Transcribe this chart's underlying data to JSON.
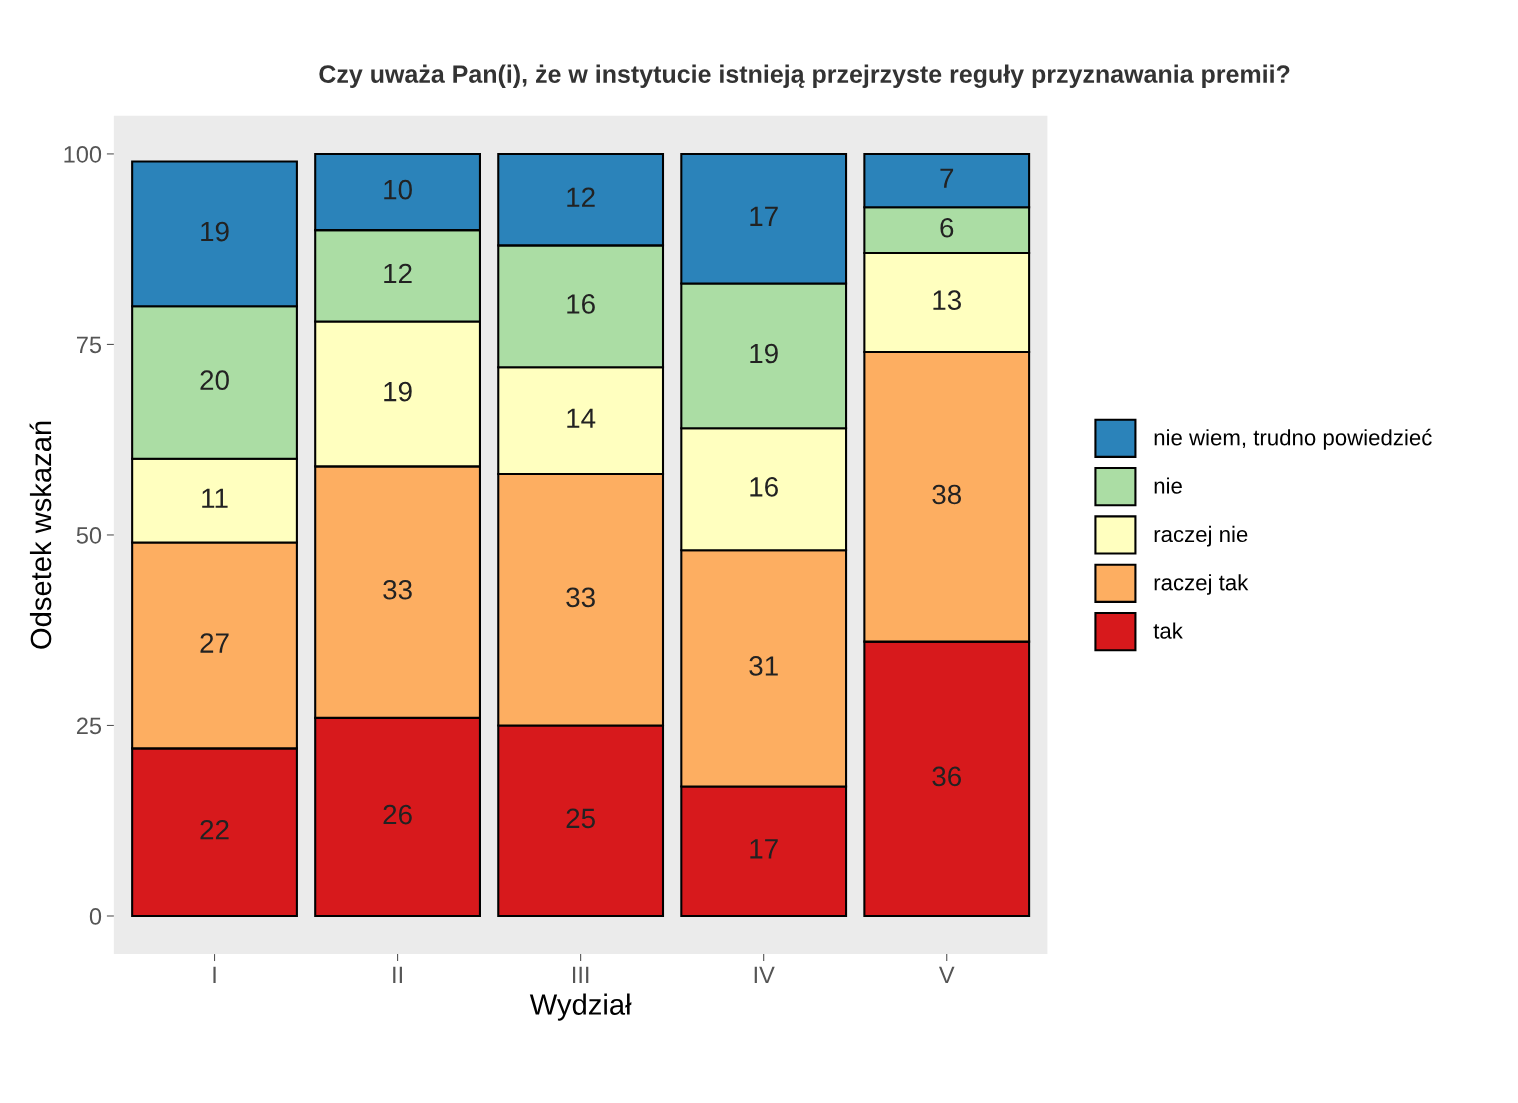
{
  "chart_data": {
    "type": "bar",
    "stacked": true,
    "title": "Czy uważa Pan(i), że w instytucie istnieją przejrzyste reguły przyznawania premii?",
    "xlabel": "Wydział",
    "ylabel": "Odsetek wskazań",
    "categories": [
      "I",
      "II",
      "III",
      "IV",
      "V"
    ],
    "series": [
      {
        "name": "tak",
        "color": "#d7191c",
        "values": [
          22,
          26,
          25,
          17,
          36
        ]
      },
      {
        "name": "raczej tak",
        "color": "#fdae61",
        "values": [
          27,
          33,
          33,
          31,
          38
        ]
      },
      {
        "name": "raczej nie",
        "color": "#ffffbf",
        "values": [
          11,
          19,
          14,
          16,
          13
        ]
      },
      {
        "name": "nie",
        "color": "#abdda4",
        "values": [
          20,
          12,
          16,
          19,
          6
        ]
      },
      {
        "name": "nie wiem, trudno powiedzieć",
        "color": "#2b83ba",
        "values": [
          19,
          10,
          12,
          17,
          7
        ]
      }
    ],
    "ylim": [
      -5,
      105
    ],
    "yticks": [
      0,
      25,
      50,
      75,
      100
    ],
    "grid": false,
    "legend": "right",
    "data_labels": true
  }
}
